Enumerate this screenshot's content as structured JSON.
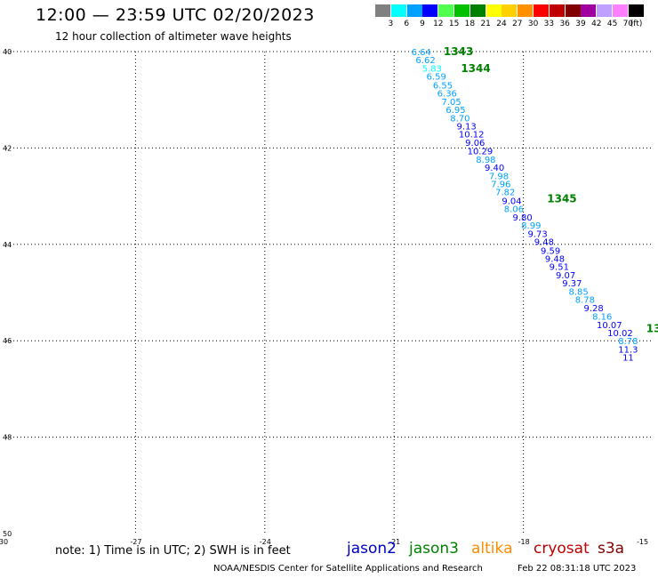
{
  "header": {
    "title": "12:00 — 23:59 UTC 02/20/2023",
    "subtitle": "12 hour collection of altimeter wave heights"
  },
  "legend": {
    "unit": "(ft)",
    "bins": [
      {
        "label": "3",
        "color": "#808080"
      },
      {
        "label": "6",
        "color": "#00ffff"
      },
      {
        "label": "9",
        "color": "#00a0ff"
      },
      {
        "label": "12",
        "color": "#0000ff"
      },
      {
        "label": "15",
        "color": "#50ff50"
      },
      {
        "label": "18",
        "color": "#00c000"
      },
      {
        "label": "21",
        "color": "#008000"
      },
      {
        "label": "24",
        "color": "#ffff00"
      },
      {
        "label": "27",
        "color": "#ffd000"
      },
      {
        "label": "30",
        "color": "#ff9000"
      },
      {
        "label": "33",
        "color": "#ff0000"
      },
      {
        "label": "36",
        "color": "#c00000"
      },
      {
        "label": "39",
        "color": "#800000"
      },
      {
        "label": "42",
        "color": "#a000a0"
      },
      {
        "label": "45",
        "color": "#c0a0ff"
      },
      {
        "label": "70",
        "color": "#ff80ff"
      },
      {
        "label": "",
        "color": "#000000"
      }
    ]
  },
  "note": "note: 1) Time is in UTC; 2) SWH is in feet",
  "satellites": [
    {
      "label": "jason2",
      "color": "#0000c0"
    },
    {
      "label": "jason3",
      "color": "#008000"
    },
    {
      "label": "altika",
      "color": "#ff8c00"
    },
    {
      "label": "cryosat",
      "color": "#c00000"
    },
    {
      "label": "s3a",
      "color": "#800000"
    }
  ],
  "footer": {
    "credit": "NOAA/NESDIS Center for Satellite Applications and Research",
    "timestamp": "Feb 22 08:31:18 UTC 2023"
  },
  "chart_data": {
    "type": "scatter",
    "title": "12:00 — 23:59 UTC 02/20/2023",
    "subtitle": "12 hour collection of altimeter wave heights",
    "xlim": [
      -30,
      -15
    ],
    "ylim": [
      -50,
      -40
    ],
    "x_ticks": [
      -30,
      -27,
      -24,
      -21,
      -18,
      -15
    ],
    "y_ticks": [
      -40,
      -42,
      -44,
      -46,
      -48,
      -50
    ],
    "y_tick_labels": [
      "40",
      "42",
      "44",
      "46",
      "48",
      "50"
    ],
    "grid": true,
    "pass_labels": [
      {
        "text": "1343",
        "x": -19.85,
        "y": -40.0
      },
      {
        "text": "1344",
        "x": -19.45,
        "y": -40.35
      },
      {
        "text": "1345",
        "x": -17.45,
        "y": -43.05
      },
      {
        "text": "13",
        "x": -15.15,
        "y": -45.75
      }
    ],
    "points": [
      {
        "v": "6.64",
        "x": -20.6,
        "y": -40.0,
        "c": "#00a0ff"
      },
      {
        "v": "6.62",
        "x": -20.5,
        "y": -40.17,
        "c": "#00a0ff"
      },
      {
        "v": "5.83",
        "x": -20.35,
        "y": -40.34,
        "c": "#00ffff"
      },
      {
        "v": "6.59",
        "x": -20.25,
        "y": -40.51,
        "c": "#00a0ff"
      },
      {
        "v": "6.55",
        "x": -20.1,
        "y": -40.69,
        "c": "#00a0ff"
      },
      {
        "v": "6.36",
        "x": -20.0,
        "y": -40.86,
        "c": "#00a0ff"
      },
      {
        "v": "7.05",
        "x": -19.9,
        "y": -41.03,
        "c": "#00a0ff"
      },
      {
        "v": "6.95",
        "x": -19.8,
        "y": -41.2,
        "c": "#00a0ff"
      },
      {
        "v": "8.70",
        "x": -19.7,
        "y": -41.37,
        "c": "#00a0ff"
      },
      {
        "v": "9.13",
        "x": -19.55,
        "y": -41.54,
        "c": "#0000ff"
      },
      {
        "v": "10.12",
        "x": -19.5,
        "y": -41.71,
        "c": "#0000ff"
      },
      {
        "v": "9.06",
        "x": -19.35,
        "y": -41.88,
        "c": "#0000ff"
      },
      {
        "v": "10.29",
        "x": -19.3,
        "y": -42.06,
        "c": "#0000ff"
      },
      {
        "v": "8.98",
        "x": -19.1,
        "y": -42.23,
        "c": "#00a0ff"
      },
      {
        "v": "9.40",
        "x": -18.9,
        "y": -42.4,
        "c": "#0000ff"
      },
      {
        "v": "7.98",
        "x": -18.8,
        "y": -42.57,
        "c": "#00a0ff"
      },
      {
        "v": "7.96",
        "x": -18.75,
        "y": -42.74,
        "c": "#00a0ff"
      },
      {
        "v": "7.82",
        "x": -18.65,
        "y": -42.91,
        "c": "#00a0ff"
      },
      {
        "v": "9.04",
        "x": -18.5,
        "y": -43.09,
        "c": "#0000ff"
      },
      {
        "v": "8.06",
        "x": -18.45,
        "y": -43.26,
        "c": "#00a0ff"
      },
      {
        "v": "9.80",
        "x": -18.25,
        "y": -43.43,
        "c": "#0000ff"
      },
      {
        "v": "8.99",
        "x": -18.05,
        "y": -43.6,
        "c": "#00a0ff"
      },
      {
        "v": "9.73",
        "x": -17.9,
        "y": -43.77,
        "c": "#0000ff"
      },
      {
        "v": "9.48",
        "x": -17.75,
        "y": -43.94,
        "c": "#0000ff"
      },
      {
        "v": "9.59",
        "x": -17.6,
        "y": -44.12,
        "c": "#0000ff"
      },
      {
        "v": "9.48",
        "x": -17.5,
        "y": -44.29,
        "c": "#0000ff"
      },
      {
        "v": "9.51",
        "x": -17.4,
        "y": -44.46,
        "c": "#0000ff"
      },
      {
        "v": "9.07",
        "x": -17.25,
        "y": -44.63,
        "c": "#0000ff"
      },
      {
        "v": "9.37",
        "x": -17.1,
        "y": -44.8,
        "c": "#0000ff"
      },
      {
        "v": "8.85",
        "x": -16.95,
        "y": -44.97,
        "c": "#00a0ff"
      },
      {
        "v": "8.78",
        "x": -16.8,
        "y": -45.14,
        "c": "#00a0ff"
      },
      {
        "v": "9.28",
        "x": -16.6,
        "y": -45.31,
        "c": "#0000ff"
      },
      {
        "v": "8.16",
        "x": -16.4,
        "y": -45.49,
        "c": "#00a0ff"
      },
      {
        "v": "10.07",
        "x": -16.3,
        "y": -45.66,
        "c": "#0000ff"
      },
      {
        "v": "10.02",
        "x": -16.05,
        "y": -45.83,
        "c": "#0000ff"
      },
      {
        "v": "8.78",
        "x": -15.8,
        "y": -46.0,
        "c": "#00a0ff"
      },
      {
        "v": "11.3",
        "x": -15.8,
        "y": -46.17,
        "c": "#0000ff"
      },
      {
        "v": "11",
        "x": -15.7,
        "y": -46.34,
        "c": "#0000ff"
      }
    ]
  }
}
